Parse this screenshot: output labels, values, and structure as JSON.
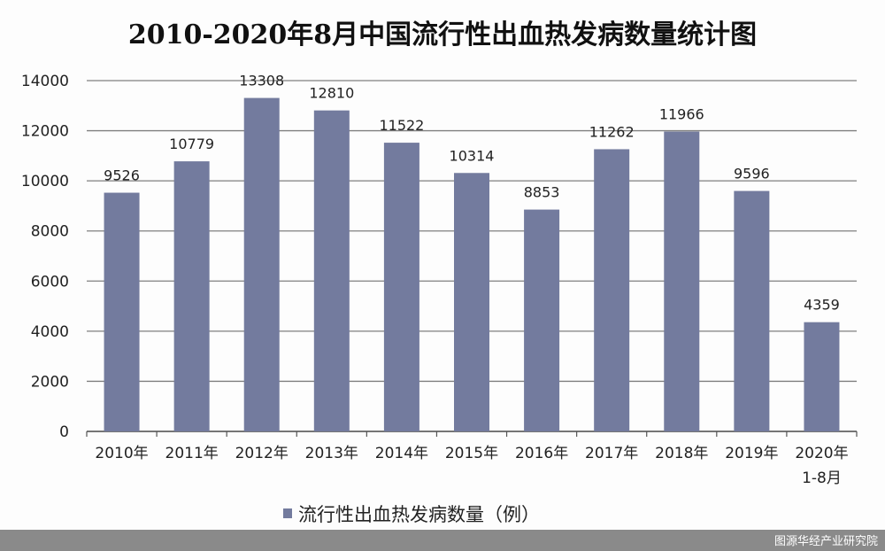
{
  "chart_data": {
    "type": "bar",
    "title": "2010-2020年8月中国流行性出血热发病数量统计图",
    "categories": [
      "2010年",
      "2011年",
      "2012年",
      "2013年",
      "2014年",
      "2015年",
      "2016年",
      "2017年",
      "2018年",
      "2019年",
      "2020年 1-8月"
    ],
    "category_lines": [
      [
        "2010年"
      ],
      [
        "2011年"
      ],
      [
        "2012年"
      ],
      [
        "2013年"
      ],
      [
        "2014年"
      ],
      [
        "2015年"
      ],
      [
        "2016年"
      ],
      [
        "2017年"
      ],
      [
        "2018年"
      ],
      [
        "2019年"
      ],
      [
        "2020年",
        "1-8月"
      ]
    ],
    "series": [
      {
        "name": "流行性出血热发病数量（例）",
        "values": [
          9526,
          10779,
          13308,
          12810,
          11522,
          10314,
          8853,
          11262,
          11966,
          9596,
          4359
        ],
        "color": "#737b9e"
      }
    ],
    "ylim": [
      0,
      14000
    ],
    "yticks": [
      0,
      2000,
      4000,
      6000,
      8000,
      10000,
      12000,
      14000
    ],
    "grid": true,
    "legend_position": "bottom"
  },
  "footer": {
    "source": "图源华经产业研究院",
    "bar_color": "#8a8a8a"
  }
}
